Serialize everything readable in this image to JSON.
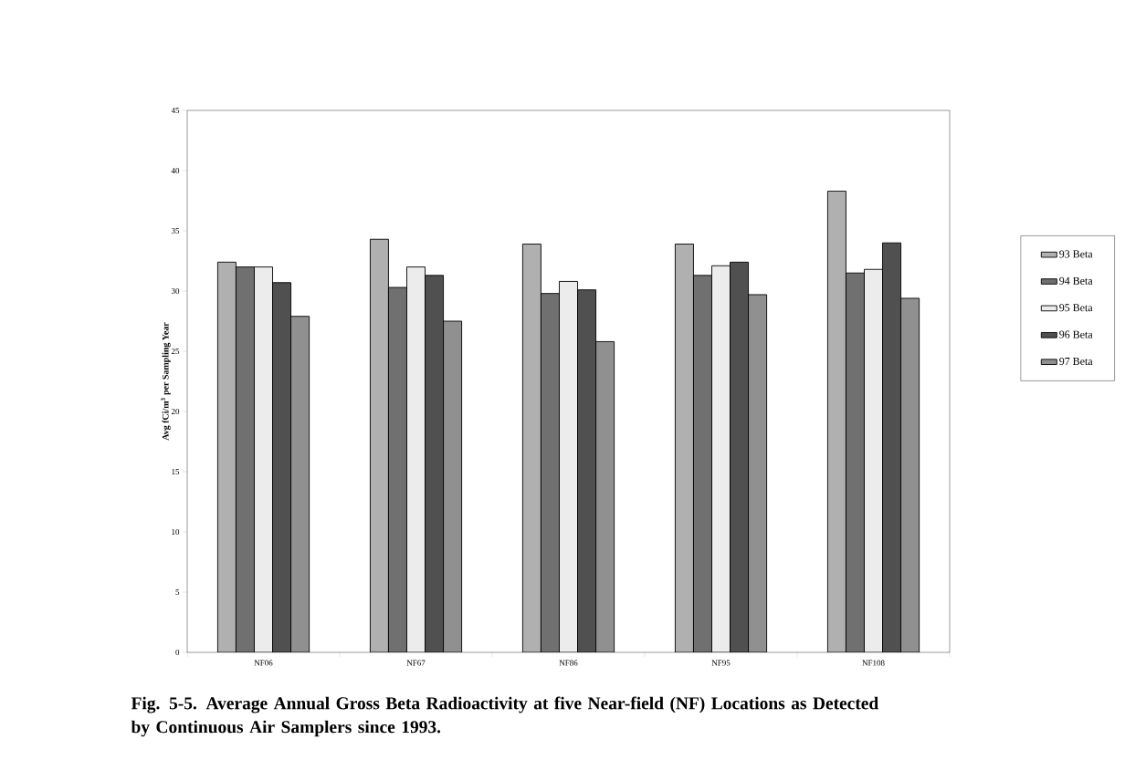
{
  "chart_data": {
    "type": "bar",
    "title": "Fig. 5-5.  Average Annual Gross Beta Radioactivity at five Near-field (NF) Locations as Detected by Continuous Air Samplers since 1993.",
    "ylabel": "Avg fCi/m$^{3}$ per Sampling Year",
    "categories": [
      "NF06",
      "NF67",
      "NF86",
      "NF95",
      "NF108"
    ],
    "series": [
      {
        "name": "93 Beta",
        "color": "#b0b0b0",
        "values": [
          32.4,
          34.3,
          33.9,
          33.9,
          38.3
        ]
      },
      {
        "name": "94 Beta",
        "color": "#707070",
        "values": [
          32.0,
          30.3,
          29.8,
          31.3,
          31.5
        ]
      },
      {
        "name": "95 Beta",
        "color": "#ececec",
        "values": [
          32.0,
          32.0,
          30.8,
          32.1,
          31.8
        ]
      },
      {
        "name": "96 Beta",
        "color": "#505050",
        "values": [
          30.7,
          31.3,
          30.1,
          32.4,
          34.0
        ]
      },
      {
        "name": "97 Beta",
        "color": "#909090",
        "values": [
          27.9,
          27.5,
          25.8,
          29.7,
          29.4
        ]
      }
    ],
    "ylim": [
      0,
      45
    ],
    "yticks": [
      0,
      5,
      10,
      15,
      20,
      25,
      30,
      35,
      40,
      45
    ],
    "grid": false,
    "legend": "right"
  }
}
